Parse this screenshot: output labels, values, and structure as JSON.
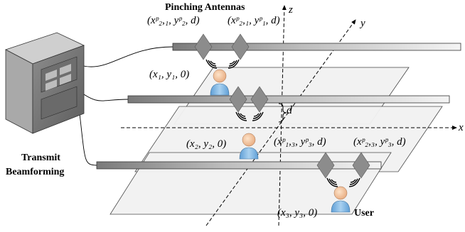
{
  "title": "Pinching Antennas",
  "transmitter": {
    "line1": "Transmit",
    "line2": "Beamforming"
  },
  "user_label": "User",
  "axes": {
    "x": "x",
    "y": "y",
    "z": "z"
  },
  "height_label": "d",
  "coords": {
    "top_left": "(xᵖ₂,₁, yᵖ₂, d)",
    "top_right": "(xᵖ₂,₁, yᵖ₁, d)",
    "user1": "(x₁, y₁, 0)",
    "user2": "(x₂, y₂, 0)",
    "user3": "(x₃, y₃, 0)",
    "mid_left": "(xᵖ₁,₃, yᵖ₃, d)",
    "mid_right": "(xᵖ₂,₃, yᵖ₃, d)"
  },
  "colors": {
    "waveguide_fill": "#d8d8d8",
    "waveguide_dark": "#8a8a8a",
    "antenna": "#8c8c8c",
    "plane": "#f1f1f1",
    "user_skin": "#f3c9a0",
    "user_body": "#8fbfe6"
  }
}
